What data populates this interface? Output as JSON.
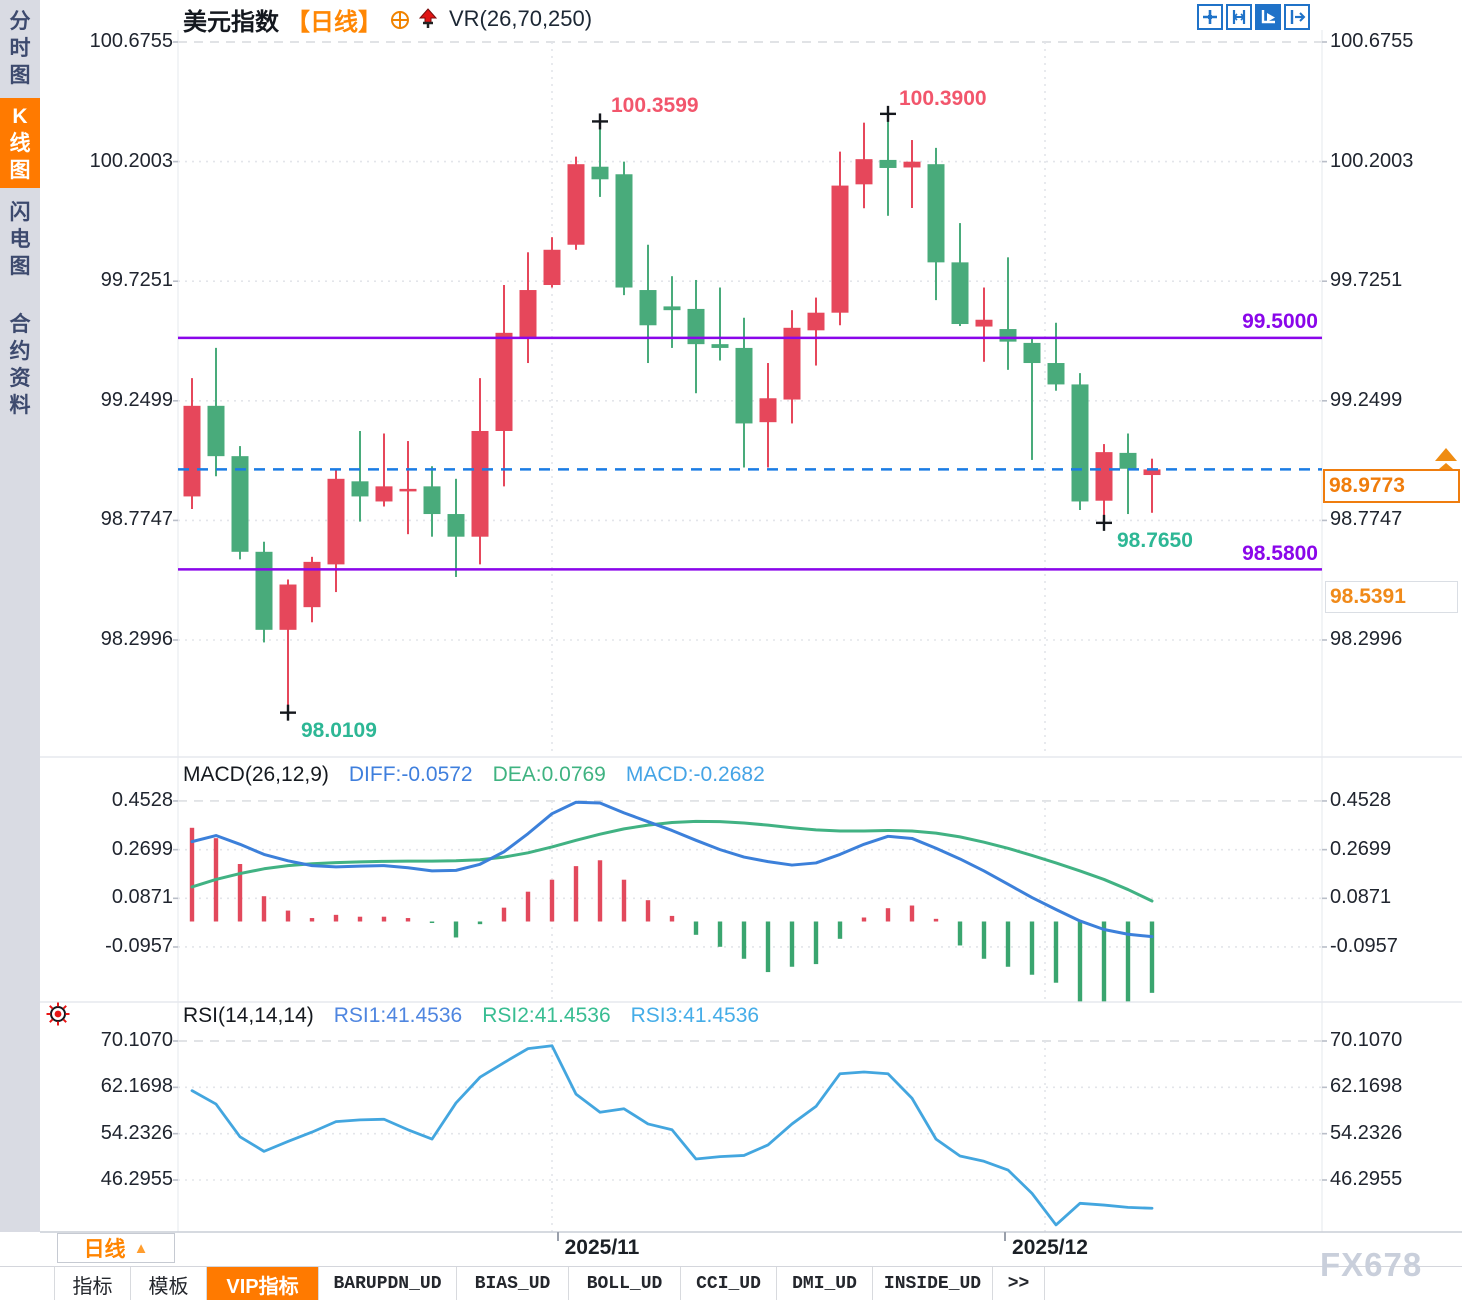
{
  "header": {
    "symbol": "美元指数",
    "period": "【日线】",
    "vr": "VR(26,70,250)"
  },
  "toolbar": {
    "icons": [
      {
        "name": "crosshair-move-icon",
        "active": false
      },
      {
        "name": "fit-horizontal-icon",
        "active": false
      },
      {
        "name": "auto-scale-icon",
        "active": true
      },
      {
        "name": "pan-right-icon",
        "active": false
      }
    ]
  },
  "sidebar": {
    "items": [
      {
        "label": "分时图",
        "active": false
      },
      {
        "label": "K线图",
        "active": true
      },
      {
        "label": "闪电图",
        "active": false
      },
      {
        "label": "合约资料",
        "active": false
      }
    ]
  },
  "price_lines": {
    "resistance": {
      "label": "99.5000",
      "value": 99.5
    },
    "support": {
      "label": "98.5800",
      "value": 98.58
    },
    "current": {
      "label": "98.9773",
      "value": 98.9773
    },
    "settlement": {
      "label": "98.5391",
      "value": 98.5391
    }
  },
  "macd_header": {
    "name": "MACD(26,12,9)",
    "diff": "DIFF:-0.0572",
    "dea": "DEA:0.0769",
    "macd": "MACD:-0.2682"
  },
  "rsi_header": {
    "name": "RSI(14,14,14)",
    "rsi1": "RSI1:41.4536",
    "rsi2": "RSI2:41.4536",
    "rsi3": "RSI3:41.4536"
  },
  "x_axis": {
    "labels": [
      "2025/11",
      "2025/12"
    ]
  },
  "bottom": {
    "period": "日线",
    "tabs": [
      {
        "label": "指标",
        "lang": "zh",
        "active": false
      },
      {
        "label": "模板",
        "lang": "zh",
        "active": false
      },
      {
        "label": "VIP指标",
        "lang": "zh",
        "active": true
      },
      {
        "label": "BARUPDN_UD",
        "lang": "en",
        "active": false
      },
      {
        "label": "BIAS_UD",
        "lang": "en",
        "active": false
      },
      {
        "label": "BOLL_UD",
        "lang": "en",
        "active": false
      },
      {
        "label": "CCI_UD",
        "lang": "en",
        "active": false
      },
      {
        "label": "DMI_UD",
        "lang": "en",
        "active": false
      },
      {
        "label": "INSIDE_UD",
        "lang": "en",
        "active": false
      },
      {
        "label": ">>",
        "lang": "en",
        "active": false
      }
    ]
  },
  "watermark": "FX678",
  "colors": {
    "up": "#e6475b",
    "down": "#49ab7b",
    "hist_up": "#e2495c",
    "hist_down": "#3aa56f",
    "macd_diff": "#3c80da",
    "macd_dea": "#41b283",
    "rsi_line": "#43a6df",
    "purple": "#8a06ea",
    "current_blue": "#1b7ce4",
    "orange": "#f58220"
  },
  "chart_data": [
    {
      "type": "candlestick",
      "title": "美元指数 日线",
      "y_ticks": [
        "100.6755",
        "100.2003",
        "99.7251",
        "99.2499",
        "98.7747",
        "98.2996"
      ],
      "y_tick_values": [
        100.6755,
        100.2003,
        99.7251,
        99.2499,
        98.7747,
        98.2996
      ],
      "x_ticks": [
        "2025/11",
        "2025/12"
      ],
      "hlines": [
        99.5,
        98.58
      ],
      "current_price": 98.9773,
      "candles": [
        [
          98.87,
          99.34,
          98.82,
          99.23
        ],
        [
          99.23,
          99.46,
          98.95,
          99.03
        ],
        [
          99.03,
          99.07,
          98.62,
          98.65
        ],
        [
          98.65,
          98.69,
          98.29,
          98.34
        ],
        [
          98.34,
          98.54,
          98.0109,
          98.52
        ],
        [
          98.43,
          98.63,
          98.37,
          98.61
        ],
        [
          98.6,
          98.98,
          98.49,
          98.94
        ],
        [
          98.93,
          99.13,
          98.77,
          98.87
        ],
        [
          98.85,
          99.12,
          98.83,
          98.91
        ],
        [
          98.89,
          99.09,
          98.72,
          98.9
        ],
        [
          98.91,
          98.99,
          98.71,
          98.8
        ],
        [
          98.8,
          98.94,
          98.55,
          98.71
        ],
        [
          98.71,
          99.34,
          98.6,
          99.13
        ],
        [
          99.13,
          99.71,
          98.91,
          99.52
        ],
        [
          99.5,
          99.84,
          99.4,
          99.69
        ],
        [
          99.71,
          99.9,
          99.7,
          99.85
        ],
        [
          99.87,
          100.22,
          99.85,
          100.19
        ],
        [
          100.18,
          100.3599,
          100.06,
          100.13
        ],
        [
          100.15,
          100.2,
          99.67,
          99.7
        ],
        [
          99.69,
          99.87,
          99.4,
          99.55
        ],
        [
          99.625,
          99.745,
          99.46,
          99.61
        ],
        [
          99.615,
          99.73,
          99.28,
          99.475
        ],
        [
          99.475,
          99.7,
          99.41,
          99.46
        ],
        [
          99.46,
          99.58,
          98.985,
          99.16
        ],
        [
          99.165,
          99.4,
          98.985,
          99.26
        ],
        [
          99.255,
          99.61,
          99.16,
          99.54
        ],
        [
          99.53,
          99.66,
          99.39,
          99.6
        ],
        [
          99.6,
          100.24,
          99.55,
          100.105
        ],
        [
          100.11,
          100.355,
          100.015,
          100.21
        ],
        [
          100.207,
          100.39,
          99.985,
          100.175
        ],
        [
          100.177,
          100.286,
          100.016,
          100.2
        ],
        [
          100.19,
          100.255,
          99.65,
          99.8
        ],
        [
          99.8,
          99.956,
          99.547,
          99.555
        ],
        [
          99.545,
          99.7,
          99.405,
          99.572
        ],
        [
          99.535,
          99.82,
          99.373,
          99.485
        ],
        [
          99.48,
          99.5,
          99.015,
          99.4
        ],
        [
          99.4,
          99.56,
          99.29,
          99.315
        ],
        [
          99.315,
          99.36,
          98.816,
          98.85
        ],
        [
          98.853,
          99.078,
          98.765,
          99.046
        ],
        [
          99.043,
          99.12,
          98.8,
          98.98
        ],
        [
          98.955,
          99.02,
          98.805,
          98.9773
        ]
      ],
      "annotations": [
        {
          "text": "100.3599",
          "candle": 18,
          "kind": "high"
        },
        {
          "text": "100.3900",
          "candle": 30,
          "kind": "high"
        },
        {
          "text": "98.0109",
          "candle": 5,
          "kind": "low"
        },
        {
          "text": "98.7650",
          "candle": 39,
          "kind": "low"
        }
      ]
    },
    {
      "type": "macd",
      "y_ticks": [
        "0.4528",
        "0.2699",
        "0.0871",
        "-0.0957"
      ],
      "y_tick_values": [
        0.4528,
        0.2699,
        0.0871,
        -0.0957
      ],
      "diff": [
        0.3,
        0.323,
        0.29,
        0.252,
        0.228,
        0.21,
        0.205,
        0.208,
        0.21,
        0.202,
        0.19,
        0.192,
        0.215,
        0.262,
        0.33,
        0.405,
        0.448,
        0.445,
        0.408,
        0.375,
        0.342,
        0.305,
        0.27,
        0.242,
        0.225,
        0.212,
        0.22,
        0.252,
        0.29,
        0.32,
        0.312,
        0.275,
        0.235,
        0.19,
        0.14,
        0.09,
        0.045,
        0.002,
        -0.03,
        -0.048,
        -0.057
      ],
      "dea": [
        0.13,
        0.158,
        0.18,
        0.198,
        0.21,
        0.217,
        0.221,
        0.224,
        0.226,
        0.227,
        0.227,
        0.228,
        0.232,
        0.242,
        0.258,
        0.28,
        0.305,
        0.328,
        0.348,
        0.362,
        0.372,
        0.376,
        0.375,
        0.37,
        0.362,
        0.352,
        0.344,
        0.34,
        0.34,
        0.342,
        0.34,
        0.332,
        0.318,
        0.298,
        0.275,
        0.248,
        0.22,
        0.19,
        0.158,
        0.12,
        0.077
      ],
      "histogram": [
        0.352,
        0.313,
        0.216,
        0.095,
        0.041,
        0.013,
        0.025,
        0.018,
        0.018,
        0.013,
        -0.005,
        -0.06,
        -0.01,
        0.052,
        0.112,
        0.157,
        0.208,
        0.23,
        0.157,
        0.08,
        0.021,
        -0.05,
        -0.095,
        -0.14,
        -0.19,
        -0.17,
        -0.16,
        -0.065,
        0.015,
        0.05,
        0.06,
        0.01,
        -0.09,
        -0.14,
        -0.17,
        -0.2,
        -0.23,
        -0.3,
        -0.3,
        -0.3,
        -0.268
      ]
    },
    {
      "type": "line",
      "name": "RSI",
      "y_ticks": [
        "70.1070",
        "62.1698",
        "54.2326",
        "46.2955"
      ],
      "y_tick_values": [
        70.107,
        62.1698,
        54.2326,
        46.2955
      ],
      "values": [
        61.6,
        59.3,
        53.7,
        51.2,
        52.9,
        54.5,
        56.3,
        56.6,
        56.7,
        54.9,
        53.3,
        59.5,
        63.9,
        66.4,
        68.8,
        69.3,
        61.0,
        57.9,
        58.5,
        55.9,
        54.9,
        49.9,
        50.3,
        50.5,
        52.3,
        55.9,
        58.9,
        64.5,
        64.8,
        64.5,
        60.3,
        53.3,
        50.4,
        49.5,
        48.0,
        44.0,
        38.6,
        42.3,
        42.0,
        41.6,
        41.4536
      ]
    }
  ]
}
